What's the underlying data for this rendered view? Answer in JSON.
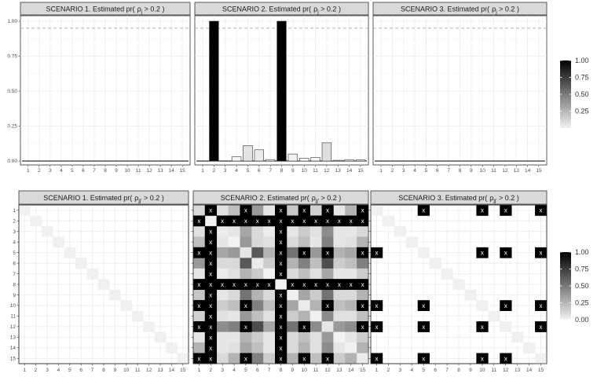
{
  "chart_data": [
    {
      "type": "bar",
      "title": "SCENARIO 1.  Estimated pr( ρj > 0.2 )",
      "strip_prefix": "SCENARIO 1.  Estimated pr(",
      "strip_sub": "j",
      "categories": [
        "1",
        "2",
        "3",
        "4",
        "5",
        "6",
        "7",
        "8",
        "9",
        "10",
        "11",
        "12",
        "13",
        "14",
        "15"
      ],
      "values": [
        0,
        0,
        0,
        0,
        0,
        0,
        0,
        0,
        0,
        0,
        0,
        0,
        0,
        0,
        0
      ],
      "ylim": [
        0,
        1
      ],
      "yticks": [
        "0.00",
        "0.25",
        "0.50",
        "0.75",
        "1.00"
      ],
      "threshold": 0.95,
      "grid": true
    },
    {
      "type": "bar",
      "title": "SCENARIO 2.  Estimated pr( ρj > 0.2 )",
      "strip_prefix": "SCENARIO 2.  Estimated pr(",
      "strip_sub": "j",
      "categories": [
        "1",
        "2",
        "3",
        "4",
        "5",
        "6",
        "7",
        "8",
        "9",
        "10",
        "11",
        "12",
        "13",
        "14",
        "15"
      ],
      "values": [
        0,
        1.0,
        0,
        0.03,
        0.11,
        0.08,
        0.01,
        1.0,
        0.05,
        0.02,
        0.025,
        0.13,
        0.005,
        0.01,
        0.008
      ],
      "ylim": [
        0,
        1
      ],
      "threshold": 0.95,
      "grid": true
    },
    {
      "type": "bar",
      "title": "SCENARIO 3.  Estimated pr( ρj > 0.2 )",
      "strip_prefix": "SCENARIO 3.  Estimated pr(",
      "strip_sub": "j",
      "categories": [
        "1",
        "2",
        "3",
        "4",
        "5",
        "6",
        "7",
        "8",
        "9",
        "10",
        "11",
        "12",
        "13",
        "14",
        "15"
      ],
      "values": [
        0,
        0,
        0,
        0,
        0,
        0,
        0,
        0,
        0,
        0,
        0,
        0,
        0,
        0,
        0
      ],
      "ylim": [
        0,
        1
      ],
      "threshold": 0.95,
      "grid": true
    },
    {
      "type": "heatmap",
      "title": "SCENARIO 1.  Estimated pr( ρjj' > 0.2 )",
      "strip_prefix": "SCENARIO 1.  Estimated pr(",
      "strip_sub": "jj'",
      "x": [
        "1",
        "2",
        "3",
        "4",
        "5",
        "6",
        "7",
        "8",
        "9",
        "10",
        "11",
        "12",
        "13",
        "14",
        "15"
      ],
      "y": [
        "1",
        "2",
        "3",
        "4",
        "5",
        "6",
        "7",
        "8",
        "9",
        "10",
        "11",
        "12",
        "13",
        "14",
        "15"
      ],
      "diag_value": 0.06,
      "offdiag_value": 0.0,
      "rows": [],
      "marks": []
    },
    {
      "type": "heatmap",
      "title": "SCENARIO 2.  Estimated pr( ρjj' > 0.2 )",
      "strip_prefix": "SCENARIO 2.  Estimated pr(",
      "strip_sub": "jj'",
      "x": [
        "1",
        "2",
        "3",
        "4",
        "5",
        "6",
        "7",
        "8",
        "9",
        "10",
        "11",
        "12",
        "13",
        "14",
        "15"
      ],
      "y": [
        "1",
        "2",
        "3",
        "4",
        "5",
        "6",
        "7",
        "8",
        "9",
        "10",
        "11",
        "12",
        "13",
        "14",
        "15"
      ],
      "rows": [
        [
          0.15,
          1.0,
          0.12,
          0.25,
          1.0,
          0.4,
          0.1,
          1.0,
          0.22,
          1.0,
          0.18,
          1.0,
          0.1,
          0.3,
          1.0
        ],
        [
          1.0,
          0.05,
          1.0,
          1.0,
          1.0,
          1.0,
          1.0,
          1.0,
          1.0,
          1.0,
          1.0,
          1.0,
          1.0,
          1.0,
          1.0
        ],
        [
          0.12,
          1.0,
          0.08,
          0.1,
          0.35,
          0.15,
          0.08,
          1.0,
          0.1,
          0.2,
          0.12,
          0.45,
          0.1,
          0.1,
          0.15
        ],
        [
          0.25,
          1.0,
          0.1,
          0.05,
          0.4,
          0.15,
          0.12,
          1.0,
          0.15,
          0.25,
          0.1,
          0.5,
          0.1,
          0.12,
          0.3
        ],
        [
          1.0,
          1.0,
          0.35,
          0.4,
          0.1,
          0.65,
          0.3,
          1.0,
          0.55,
          1.0,
          0.4,
          1.0,
          0.3,
          0.35,
          1.0
        ],
        [
          0.4,
          1.0,
          0.15,
          0.15,
          0.65,
          0.08,
          0.2,
          1.0,
          0.3,
          0.5,
          0.25,
          0.7,
          0.2,
          0.25,
          0.5
        ],
        [
          0.1,
          1.0,
          0.08,
          0.12,
          0.3,
          0.2,
          0.05,
          1.0,
          0.15,
          0.25,
          0.12,
          0.35,
          0.1,
          0.1,
          0.2
        ],
        [
          1.0,
          1.0,
          1.0,
          1.0,
          1.0,
          1.0,
          1.0,
          0.05,
          1.0,
          1.0,
          1.0,
          1.0,
          1.0,
          1.0,
          1.0
        ],
        [
          0.22,
          1.0,
          0.1,
          0.15,
          0.55,
          0.3,
          0.15,
          1.0,
          0.06,
          0.35,
          0.2,
          0.55,
          0.15,
          0.15,
          0.3
        ],
        [
          1.0,
          1.0,
          0.2,
          0.25,
          1.0,
          0.5,
          0.25,
          1.0,
          0.35,
          0.08,
          0.3,
          1.0,
          0.25,
          0.3,
          1.0
        ],
        [
          0.18,
          1.0,
          0.12,
          0.1,
          0.4,
          0.25,
          0.12,
          1.0,
          0.2,
          0.3,
          0.06,
          0.45,
          0.12,
          0.12,
          0.25
        ],
        [
          1.0,
          1.0,
          0.45,
          0.5,
          1.0,
          0.7,
          0.35,
          1.0,
          0.55,
          1.0,
          0.45,
          0.1,
          0.4,
          0.45,
          1.0
        ],
        [
          0.1,
          1.0,
          0.1,
          0.1,
          0.3,
          0.2,
          0.1,
          1.0,
          0.15,
          0.25,
          0.12,
          0.4,
          0.05,
          0.1,
          0.2
        ],
        [
          0.3,
          1.0,
          0.1,
          0.12,
          0.35,
          0.25,
          0.1,
          1.0,
          0.15,
          0.3,
          0.12,
          0.45,
          0.1,
          0.06,
          0.3
        ],
        [
          1.0,
          1.0,
          0.15,
          0.3,
          1.0,
          0.5,
          0.2,
          1.0,
          0.3,
          1.0,
          0.25,
          1.0,
          0.2,
          0.3,
          0.08
        ]
      ],
      "marks": [
        [
          1,
          2
        ],
        [
          1,
          5
        ],
        [
          1,
          8
        ],
        [
          1,
          10
        ],
        [
          1,
          12
        ],
        [
          1,
          15
        ],
        [
          2,
          1
        ],
        [
          2,
          3
        ],
        [
          2,
          4
        ],
        [
          2,
          5
        ],
        [
          2,
          6
        ],
        [
          2,
          7
        ],
        [
          2,
          8
        ],
        [
          2,
          9
        ],
        [
          2,
          10
        ],
        [
          2,
          11
        ],
        [
          2,
          12
        ],
        [
          2,
          13
        ],
        [
          2,
          14
        ],
        [
          2,
          15
        ],
        [
          3,
          2
        ],
        [
          3,
          8
        ],
        [
          4,
          2
        ],
        [
          4,
          8
        ],
        [
          5,
          1
        ],
        [
          5,
          2
        ],
        [
          5,
          8
        ],
        [
          5,
          10
        ],
        [
          5,
          12
        ],
        [
          5,
          15
        ],
        [
          6,
          2
        ],
        [
          6,
          8
        ],
        [
          7,
          2
        ],
        [
          7,
          8
        ],
        [
          8,
          1
        ],
        [
          8,
          2
        ],
        [
          8,
          3
        ],
        [
          8,
          4
        ],
        [
          8,
          5
        ],
        [
          8,
          6
        ],
        [
          8,
          7
        ],
        [
          8,
          9
        ],
        [
          8,
          10
        ],
        [
          8,
          11
        ],
        [
          8,
          12
        ],
        [
          8,
          13
        ],
        [
          8,
          14
        ],
        [
          8,
          15
        ],
        [
          9,
          2
        ],
        [
          9,
          8
        ],
        [
          10,
          1
        ],
        [
          10,
          2
        ],
        [
          10,
          5
        ],
        [
          10,
          8
        ],
        [
          10,
          12
        ],
        [
          10,
          15
        ],
        [
          11,
          2
        ],
        [
          11,
          8
        ],
        [
          12,
          1
        ],
        [
          12,
          2
        ],
        [
          12,
          5
        ],
        [
          12,
          8
        ],
        [
          12,
          10
        ],
        [
          12,
          15
        ],
        [
          13,
          2
        ],
        [
          13,
          8
        ],
        [
          14,
          2
        ],
        [
          14,
          8
        ],
        [
          15,
          1
        ],
        [
          15,
          2
        ],
        [
          15,
          5
        ],
        [
          15,
          8
        ],
        [
          15,
          10
        ],
        [
          15,
          12
        ]
      ],
      "mark_symbol": "x"
    },
    {
      "type": "heatmap",
      "title": "SCENARIO 3.  Estimated pr( ρjj' > 0.2 )",
      "strip_prefix": "SCENARIO 3.  Estimated pr(",
      "strip_sub": "jj'",
      "x": [
        "1",
        "2",
        "3",
        "4",
        "5",
        "6",
        "7",
        "8",
        "9",
        "10",
        "11",
        "12",
        "13",
        "14",
        "15"
      ],
      "y": [
        "1",
        "2",
        "3",
        "4",
        "5",
        "6",
        "7",
        "8",
        "9",
        "10",
        "11",
        "12",
        "13",
        "14",
        "15"
      ],
      "diag_value": 0.06,
      "offdiag_value": 0.0,
      "rows": [],
      "marks": [
        [
          1,
          5
        ],
        [
          1,
          10
        ],
        [
          1,
          12
        ],
        [
          1,
          15
        ],
        [
          5,
          1
        ],
        [
          5,
          10
        ],
        [
          5,
          12
        ],
        [
          5,
          15
        ],
        [
          10,
          1
        ],
        [
          10,
          5
        ],
        [
          10,
          12
        ],
        [
          10,
          15
        ],
        [
          12,
          1
        ],
        [
          12,
          5
        ],
        [
          12,
          10
        ],
        [
          12,
          15
        ],
        [
          15,
          1
        ],
        [
          15,
          5
        ],
        [
          15,
          10
        ],
        [
          15,
          12
        ]
      ],
      "mark_symbol": "x"
    }
  ],
  "legends": [
    {
      "ticks": [
        "1.00",
        "0.75",
        "0.50",
        "0.25"
      ],
      "range": [
        0,
        1
      ]
    },
    {
      "ticks": [
        "1.00",
        "0.75",
        "0.50",
        "0.25",
        "0.00"
      ],
      "range": [
        0,
        1
      ]
    }
  ],
  "colors": {
    "low": "#ffffff",
    "high": "#000000",
    "strip_bg": "#d9d9d9",
    "grid": "#ebebeb",
    "threshold": "#999999"
  }
}
